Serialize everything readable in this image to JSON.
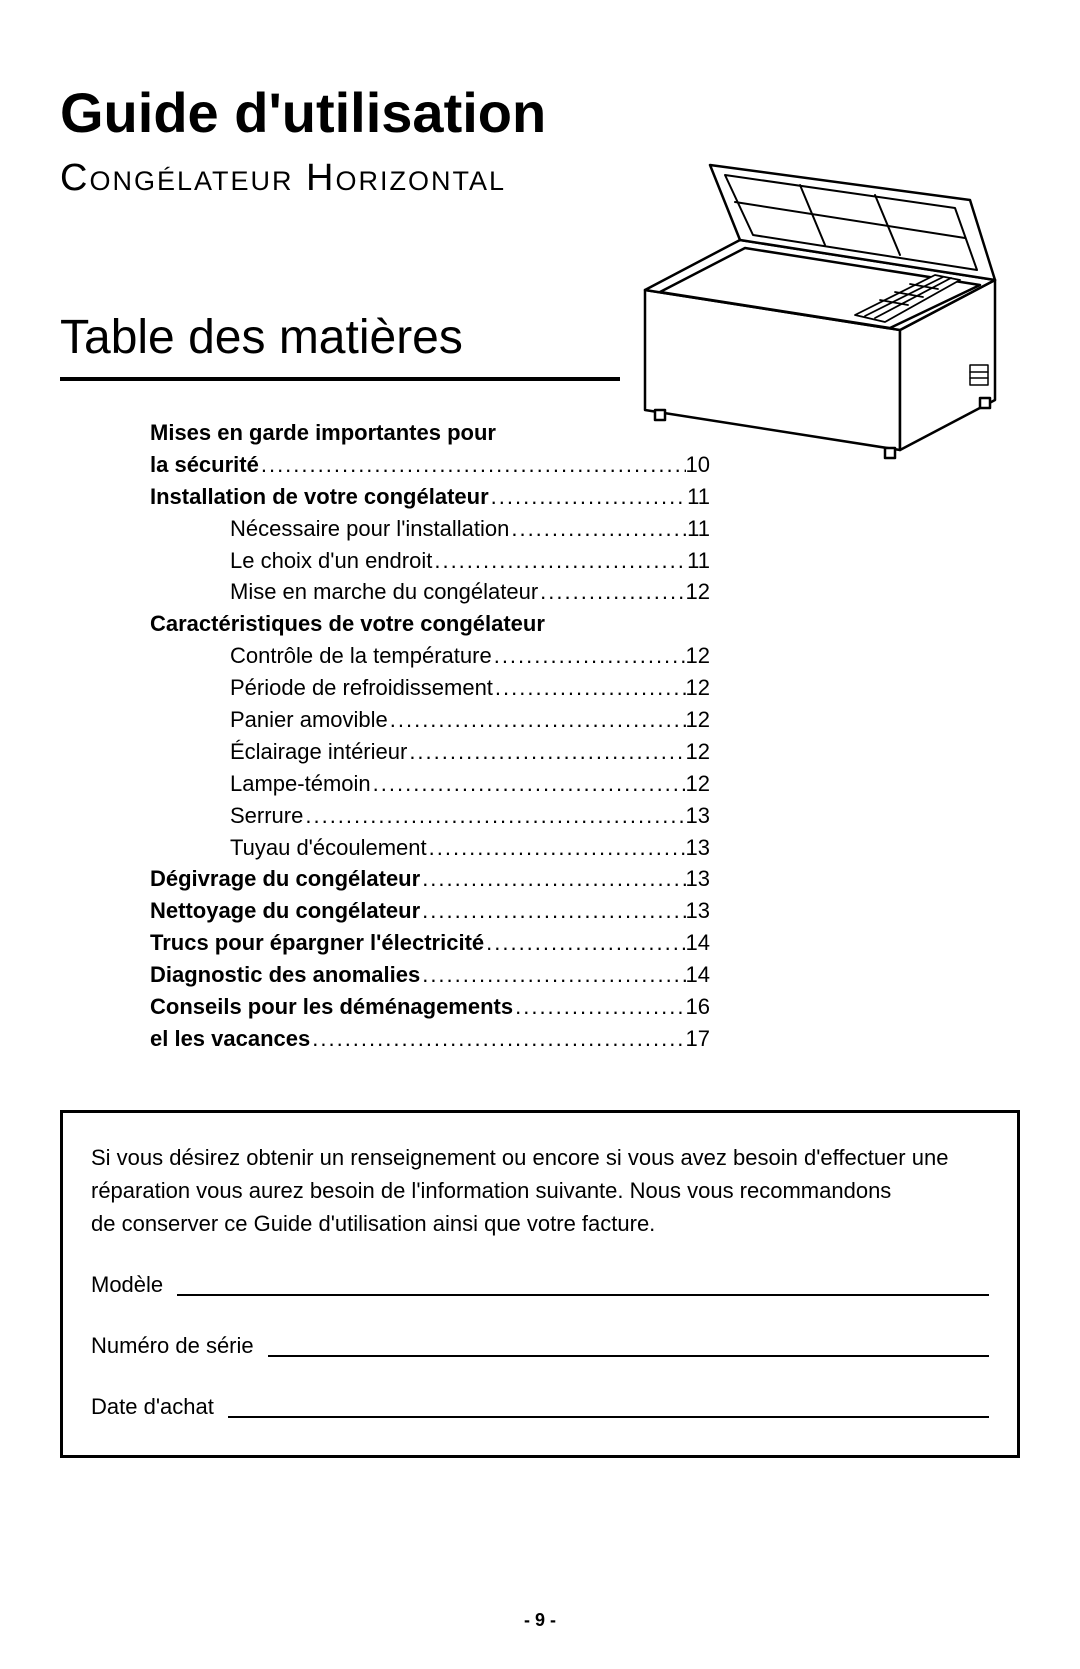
{
  "header": {
    "title": "Guide d'utilisation",
    "subtitle": "Congélateur Horizontal"
  },
  "toc_title": "Table des matières",
  "toc": [
    {
      "label": "Mises en garde importantes pour",
      "page": "",
      "bold": true,
      "indent": false,
      "dots": false
    },
    {
      "label": "la sécurité",
      "page": "10",
      "bold": true,
      "indent": false,
      "dots": true
    },
    {
      "label": "Installation de votre congélateur",
      "page": "11",
      "bold": true,
      "indent": false,
      "dots": true
    },
    {
      "label": "Nécessaire pour l'installation",
      "page": "11",
      "bold": false,
      "indent": true,
      "dots": true
    },
    {
      "label": "Le choix d'un endroit ",
      "page": "11",
      "bold": false,
      "indent": true,
      "dots": true
    },
    {
      "label": "Mise en marche du congélateur",
      "page": "12",
      "bold": false,
      "indent": true,
      "dots": true
    },
    {
      "label": "Caractéristiques de votre congélateur",
      "page": "",
      "bold": true,
      "indent": false,
      "dots": false
    },
    {
      "label": "Contrôle de la température ",
      "page": "12",
      "bold": false,
      "indent": true,
      "dots": true
    },
    {
      "label": "Période de refroidissement",
      "page": "12",
      "bold": false,
      "indent": true,
      "dots": true
    },
    {
      "label": "Panier amovible",
      "page": "12",
      "bold": false,
      "indent": true,
      "dots": true
    },
    {
      "label": "Éclairage intérieur",
      "page": "12",
      "bold": false,
      "indent": true,
      "dots": true
    },
    {
      "label": "Lampe-témoin ",
      "page": "12",
      "bold": false,
      "indent": true,
      "dots": true
    },
    {
      "label": "Serrure ",
      "page": "13",
      "bold": false,
      "indent": true,
      "dots": true
    },
    {
      "label": "Tuyau d'écoulement",
      "page": "13",
      "bold": false,
      "indent": true,
      "dots": true
    },
    {
      "label": "Dégivrage du congélateur",
      "page": "13",
      "bold": true,
      "indent": false,
      "dots": true
    },
    {
      "label": "Nettoyage du congélateur",
      "page": "13",
      "bold": true,
      "indent": false,
      "dots": true
    },
    {
      "label": "Trucs pour épargner l'électricité",
      "page": "14",
      "bold": true,
      "indent": false,
      "dots": true
    },
    {
      "label": "Diagnostic des anomalies",
      "page": "14",
      "bold": true,
      "indent": false,
      "dots": true
    },
    {
      "label": "Conseils pour les déménagements",
      "page": "16",
      "bold": true,
      "indent": false,
      "dots": true
    },
    {
      "label": "el les vacances",
      "page": "17",
      "bold": true,
      "indent": false,
      "dots": true
    }
  ],
  "record_box": {
    "para1": "Si vous désirez obtenir un renseignement ou encore si vous avez besoin d'effectuer une réparation vous aurez besoin de l'information suivante.  Nous vous recommandons",
    "para2": "de conserver ce Guide d'utilisation ainsi que votre facture.",
    "model_label": "Modèle",
    "serial_label": "Numéro de série",
    "date_label": "Date d'achat"
  },
  "footer": "- 9 -",
  "style": {
    "page_bg": "#ffffff",
    "text_color": "#000000",
    "title_fontsize": 56,
    "subtitle_fontsize": 38,
    "toc_title_fontsize": 48,
    "toc_fontsize": 22,
    "box_border_width": 3,
    "toc_rule_width": 4,
    "toc_width": 560,
    "toc_indent": 80,
    "dot_char": "."
  }
}
